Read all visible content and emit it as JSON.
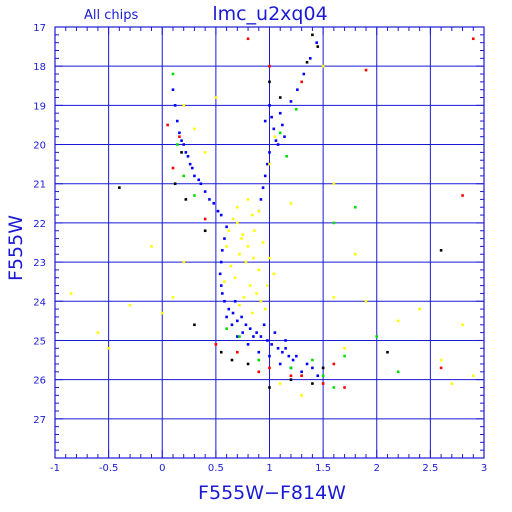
{
  "chart_data": {
    "type": "scatter",
    "title": "lmc_u2xq04",
    "subtitle": "All chips",
    "xlabel": "F555W−F814W",
    "ylabel": "F555W",
    "xlim": [
      -1,
      3
    ],
    "ylim": [
      28,
      17
    ],
    "y_inverted": true,
    "grid": true,
    "x_ticks": [
      "-1",
      "-0.5",
      "0",
      "0.5",
      "1",
      "1.5",
      "2",
      "2.5",
      "3"
    ],
    "y_ticks": [
      "17",
      "18",
      "19",
      "20",
      "21",
      "22",
      "23",
      "24",
      "25",
      "26",
      "27"
    ],
    "colors": {
      "frame": "#1a1ad6",
      "grid": "#1a1ad6",
      "text": "#1a1ad6",
      "series_yellow": "#ffff00",
      "series_blue": "#0000ff",
      "series_green": "#00e000",
      "series_red": "#ff0000",
      "series_black": "#000000"
    },
    "series": [
      {
        "color": "#0000ff",
        "points": [
          [
            0.78,
            24.6
          ],
          [
            0.82,
            24.7
          ],
          [
            0.88,
            24.8
          ],
          [
            0.92,
            24.9
          ],
          [
            0.98,
            25.0
          ],
          [
            1.02,
            25.1
          ],
          [
            1.08,
            25.2
          ],
          [
            1.12,
            25.3
          ],
          [
            1.18,
            25.4
          ],
          [
            1.22,
            25.5
          ],
          [
            0.7,
            24.5
          ],
          [
            0.74,
            24.4
          ],
          [
            0.66,
            24.3
          ],
          [
            0.62,
            24.2
          ],
          [
            0.58,
            24.0
          ],
          [
            0.56,
            23.8
          ],
          [
            0.55,
            23.6
          ],
          [
            0.54,
            23.3
          ],
          [
            0.55,
            23.0
          ],
          [
            0.56,
            22.7
          ],
          [
            0.58,
            22.4
          ],
          [
            0.6,
            22.1
          ],
          [
            0.55,
            21.8
          ],
          [
            0.48,
            21.5
          ],
          [
            0.4,
            21.2
          ],
          [
            0.34,
            20.9
          ],
          [
            0.28,
            20.6
          ],
          [
            0.24,
            20.3
          ],
          [
            0.2,
            20.0
          ],
          [
            0.16,
            19.7
          ],
          [
            0.14,
            19.4
          ],
          [
            0.12,
            19.0
          ],
          [
            0.1,
            18.6
          ],
          [
            0.22,
            20.2
          ],
          [
            0.3,
            20.8
          ],
          [
            0.18,
            19.9
          ],
          [
            0.26,
            20.5
          ],
          [
            0.36,
            21.0
          ],
          [
            0.44,
            21.4
          ],
          [
            0.52,
            21.7
          ],
          [
            1.0,
            19.0
          ],
          [
            1.02,
            19.3
          ],
          [
            1.04,
            19.6
          ],
          [
            1.06,
            19.9
          ],
          [
            1.0,
            20.2
          ],
          [
            0.98,
            20.5
          ],
          [
            0.96,
            20.8
          ],
          [
            0.94,
            21.1
          ],
          [
            0.92,
            21.4
          ],
          [
            0.9,
            21.7
          ],
          [
            1.1,
            19.2
          ],
          [
            1.12,
            19.5
          ],
          [
            0.96,
            19.4
          ],
          [
            1.08,
            20.0
          ],
          [
            1.14,
            19.8
          ],
          [
            1.2,
            18.9
          ],
          [
            1.26,
            18.6
          ],
          [
            1.32,
            18.2
          ],
          [
            1.38,
            17.8
          ],
          [
            1.44,
            17.4
          ],
          [
            0.8,
            25.1
          ],
          [
            0.9,
            25.3
          ],
          [
            1.0,
            25.4
          ],
          [
            1.1,
            25.6
          ],
          [
            1.2,
            25.7
          ],
          [
            1.3,
            25.8
          ],
          [
            1.35,
            25.6
          ],
          [
            1.25,
            25.4
          ],
          [
            1.15,
            25.2
          ],
          [
            0.85,
            24.9
          ],
          [
            0.95,
            24.6
          ],
          [
            1.05,
            24.8
          ],
          [
            1.15,
            25.0
          ],
          [
            0.75,
            24.8
          ],
          [
            0.65,
            24.6
          ],
          [
            0.7,
            24.9
          ],
          [
            1.4,
            25.7
          ],
          [
            1.45,
            25.9
          ],
          [
            0.6,
            24.4
          ],
          [
            0.68,
            24.0
          ]
        ]
      },
      {
        "color": "#ffff00",
        "points": [
          [
            0.7,
            22.0
          ],
          [
            0.75,
            22.3
          ],
          [
            0.8,
            22.6
          ],
          [
            0.85,
            22.9
          ],
          [
            0.9,
            23.2
          ],
          [
            0.78,
            23.0
          ],
          [
            0.72,
            22.8
          ],
          [
            0.68,
            23.4
          ],
          [
            0.82,
            23.6
          ],
          [
            0.88,
            23.8
          ],
          [
            0.92,
            24.0
          ],
          [
            0.76,
            23.9
          ],
          [
            0.64,
            23.1
          ],
          [
            0.6,
            22.6
          ],
          [
            0.86,
            22.2
          ],
          [
            0.94,
            22.5
          ],
          [
            1.0,
            22.9
          ],
          [
            1.04,
            23.3
          ],
          [
            0.98,
            23.6
          ],
          [
            0.74,
            22.4
          ],
          [
            0.66,
            21.9
          ],
          [
            0.7,
            21.6
          ],
          [
            0.8,
            21.4
          ],
          [
            0.84,
            21.8
          ],
          [
            0.9,
            21.7
          ],
          [
            0.62,
            22.2
          ],
          [
            0.58,
            23.5
          ],
          [
            0.96,
            24.2
          ],
          [
            0.84,
            24.3
          ],
          [
            0.72,
            24.1
          ],
          [
            0.4,
            20.2
          ],
          [
            0.3,
            19.6
          ],
          [
            1.0,
            20.5
          ],
          [
            1.05,
            19.8
          ],
          [
            0.2,
            19.0
          ],
          [
            1.5,
            18.0
          ],
          [
            1.4,
            17.2
          ],
          [
            1.6,
            23.9
          ],
          [
            1.9,
            24.0
          ],
          [
            2.2,
            24.5
          ],
          [
            2.6,
            25.5
          ],
          [
            2.8,
            24.6
          ],
          [
            -0.3,
            24.1
          ],
          [
            -0.6,
            24.8
          ],
          [
            -0.85,
            23.8
          ],
          [
            -0.5,
            25.2
          ],
          [
            0.1,
            23.9
          ],
          [
            0.2,
            23.0
          ],
          [
            1.8,
            22.8
          ],
          [
            2.4,
            24.2
          ],
          [
            1.7,
            25.2
          ],
          [
            1.3,
            26.4
          ],
          [
            1.1,
            26.1
          ],
          [
            -0.1,
            22.6
          ],
          [
            0.0,
            24.3
          ],
          [
            2.7,
            26.1
          ],
          [
            2.9,
            25.9
          ],
          [
            1.2,
            21.5
          ],
          [
            1.6,
            21.0
          ],
          [
            0.5,
            18.8
          ]
        ]
      },
      {
        "color": "#00e000",
        "points": [
          [
            0.72,
            24.9
          ],
          [
            1.3,
            25.9
          ],
          [
            1.5,
            25.9
          ],
          [
            1.4,
            25.5
          ],
          [
            0.6,
            24.7
          ],
          [
            1.2,
            25.7
          ],
          [
            0.2,
            20.8
          ],
          [
            0.14,
            20.0
          ],
          [
            1.1,
            19.7
          ],
          [
            1.16,
            20.3
          ],
          [
            1.6,
            22.0
          ],
          [
            1.8,
            21.6
          ],
          [
            2.0,
            24.9
          ],
          [
            1.7,
            25.4
          ],
          [
            0.9,
            25.5
          ],
          [
            1.6,
            26.2
          ],
          [
            0.3,
            21.3
          ],
          [
            1.25,
            19.1
          ],
          [
            2.2,
            25.8
          ],
          [
            0.1,
            18.2
          ]
        ]
      },
      {
        "color": "#ff0000",
        "points": [
          [
            0.5,
            25.1
          ],
          [
            0.7,
            25.3
          ],
          [
            1.0,
            25.7
          ],
          [
            1.3,
            25.9
          ],
          [
            1.5,
            26.1
          ],
          [
            0.1,
            20.6
          ],
          [
            0.16,
            19.8
          ],
          [
            1.3,
            18.4
          ],
          [
            1.0,
            18.0
          ],
          [
            0.8,
            17.3
          ],
          [
            1.9,
            18.1
          ],
          [
            2.8,
            21.3
          ],
          [
            2.9,
            17.3
          ],
          [
            0.05,
            19.5
          ],
          [
            1.7,
            26.2
          ],
          [
            1.6,
            25.6
          ],
          [
            2.6,
            25.7
          ],
          [
            0.4,
            21.9
          ],
          [
            1.2,
            25.9
          ],
          [
            0.9,
            25.8
          ]
        ]
      },
      {
        "color": "#000000",
        "points": [
          [
            1.4,
            17.2
          ],
          [
            1.45,
            17.5
          ],
          [
            1.35,
            17.9
          ],
          [
            0.55,
            25.3
          ],
          [
            0.65,
            25.5
          ],
          [
            0.8,
            25.6
          ],
          [
            1.2,
            26.0
          ],
          [
            1.4,
            26.1
          ],
          [
            1.5,
            25.7
          ],
          [
            0.12,
            21.0
          ],
          [
            0.22,
            21.4
          ],
          [
            1.0,
            18.4
          ],
          [
            1.1,
            18.8
          ],
          [
            2.1,
            25.3
          ],
          [
            0.4,
            22.2
          ],
          [
            -0.4,
            21.1
          ],
          [
            2.6,
            22.7
          ],
          [
            0.3,
            24.6
          ],
          [
            1.0,
            26.2
          ],
          [
            0.18,
            20.2
          ]
        ]
      }
    ]
  }
}
